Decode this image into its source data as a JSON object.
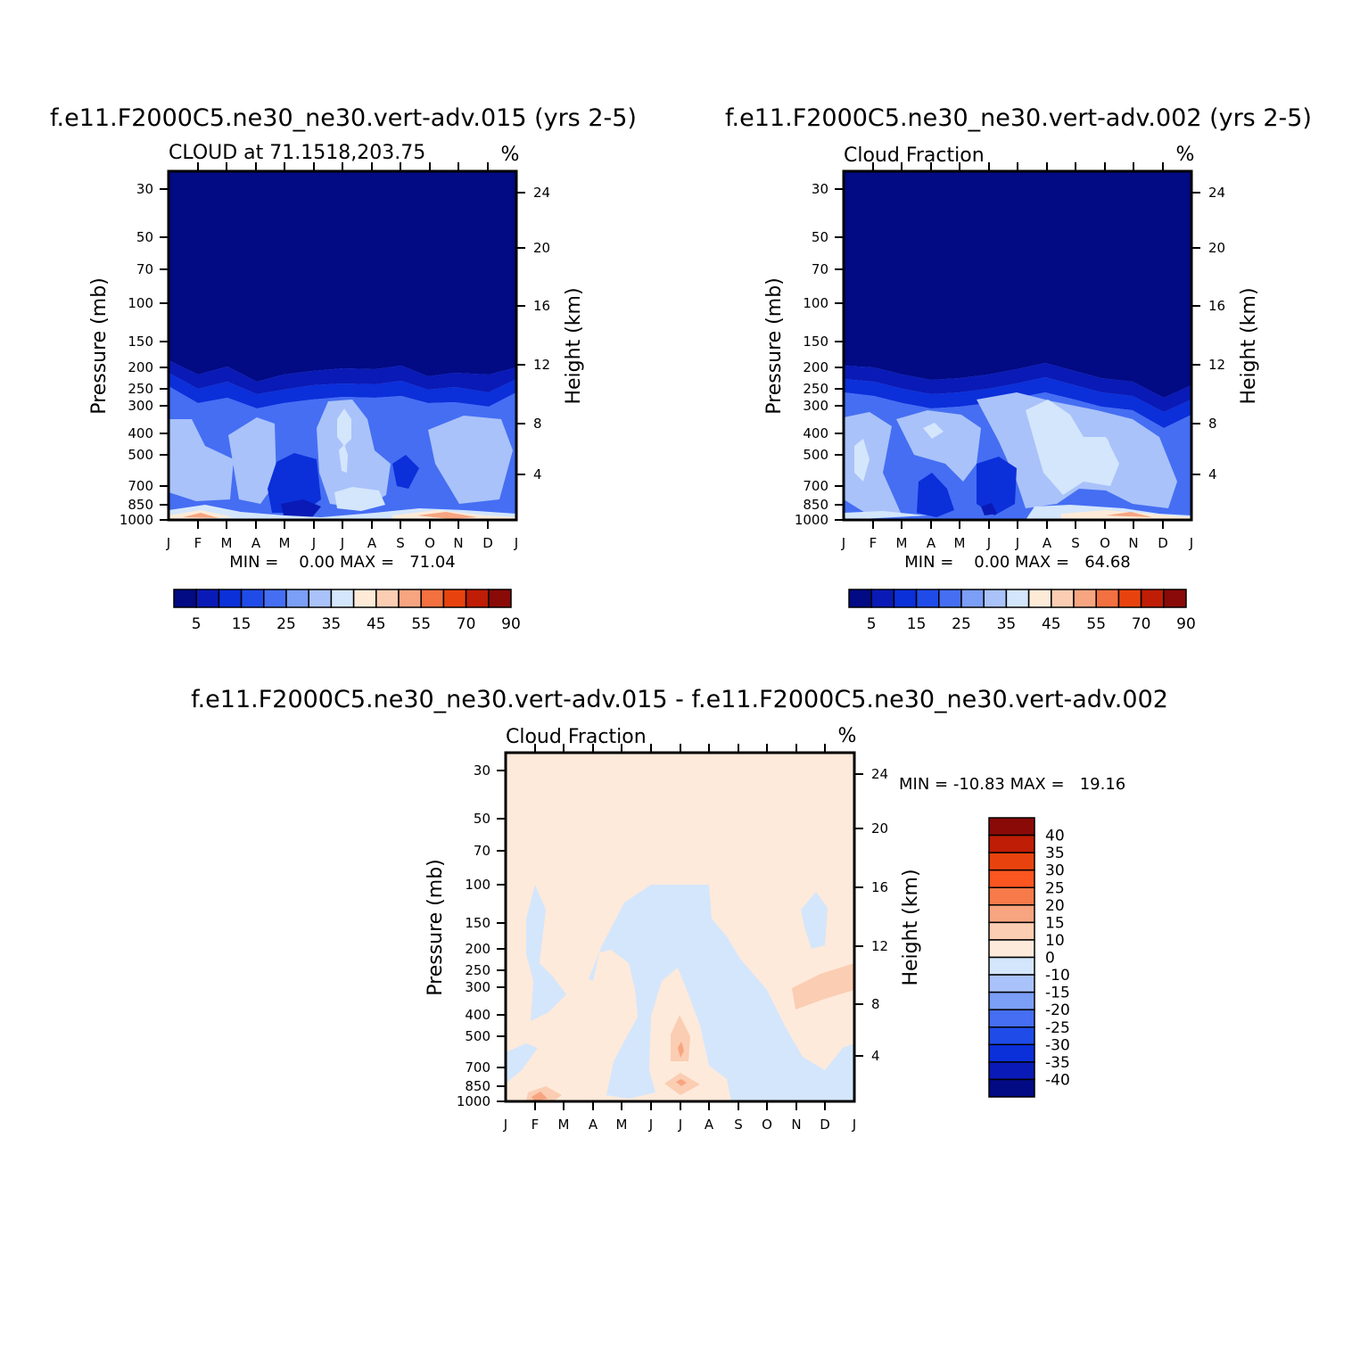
{
  "chart_data": [
    {
      "type": "heatmap",
      "title": "f.e11.F2000C5.ne30_ne30.vert-adv.015 (yrs 2-5)",
      "subtitle": "CLOUD at 71.1518,203.75",
      "units": "%",
      "ylabel": "Pressure (mb)",
      "y2label": "Height (km)",
      "x_ticks": [
        "J",
        "F",
        "M",
        "A",
        "M",
        "J",
        "J",
        "A",
        "S",
        "O",
        "N",
        "D",
        "J"
      ],
      "y_ticks": [
        30,
        50,
        70,
        100,
        150,
        200,
        250,
        300,
        400,
        500,
        700,
        850,
        1000
      ],
      "y2_ticks": [
        24,
        20,
        16,
        12,
        8,
        4
      ],
      "ylim": [
        1000,
        25
      ],
      "yscale": "log",
      "stats": "MIN =    0.00 MAX =   71.04",
      "min": 0.0,
      "max": 71.04,
      "colorbar_labels": [
        "5",
        "15",
        "25",
        "35",
        "45",
        "55",
        "70",
        "90"
      ],
      "colorbar_colors": [
        "#020a84",
        "#0a1ab6",
        "#0b2fd9",
        "#1f4ce8",
        "#456ef3",
        "#7b9ef6",
        "#a9c2fa",
        "#d4e6fc",
        "#fdebd8",
        "#fbcdb2",
        "#f7a580",
        "#f37040",
        "#e8430e",
        "#bf1d05",
        "#8a0a08"
      ],
      "colorbar_orientation": "horizontal"
    },
    {
      "type": "heatmap",
      "title": "f.e11.F2000C5.ne30_ne30.vert-adv.002 (yrs 2-5)",
      "subtitle": "Cloud Fraction",
      "units": "%",
      "ylabel": "Pressure (mb)",
      "y2label": "Height (km)",
      "x_ticks": [
        "J",
        "F",
        "M",
        "A",
        "M",
        "J",
        "J",
        "A",
        "S",
        "O",
        "N",
        "D",
        "J"
      ],
      "y_ticks": [
        30,
        50,
        70,
        100,
        150,
        200,
        250,
        300,
        400,
        500,
        700,
        850,
        1000
      ],
      "y2_ticks": [
        24,
        20,
        16,
        12,
        8,
        4
      ],
      "ylim": [
        1000,
        25
      ],
      "yscale": "log",
      "stats": "MIN =    0.00 MAX =   64.68",
      "min": 0.0,
      "max": 64.68,
      "colorbar_labels": [
        "5",
        "15",
        "25",
        "35",
        "45",
        "55",
        "70",
        "90"
      ],
      "colorbar_colors": [
        "#020a84",
        "#0a1ab6",
        "#0b2fd9",
        "#1f4ce8",
        "#456ef3",
        "#7b9ef6",
        "#a9c2fa",
        "#d4e6fc",
        "#fdebd8",
        "#fbcdb2",
        "#f7a580",
        "#f37040",
        "#e8430e",
        "#bf1d05",
        "#8a0a08"
      ],
      "colorbar_orientation": "horizontal"
    },
    {
      "type": "heatmap",
      "title": "f.e11.F2000C5.ne30_ne30.vert-adv.015 - f.e11.F2000C5.ne30_ne30.vert-adv.002",
      "subtitle": "Cloud Fraction",
      "units": "%",
      "ylabel": "Pressure (mb)",
      "y2label": "Height (km)",
      "x_ticks": [
        "J",
        "F",
        "M",
        "A",
        "M",
        "J",
        "J",
        "A",
        "S",
        "O",
        "N",
        "D",
        "J"
      ],
      "y_ticks": [
        30,
        50,
        70,
        100,
        150,
        200,
        250,
        300,
        400,
        500,
        700,
        850,
        1000
      ],
      "y2_ticks": [
        24,
        20,
        16,
        12,
        8,
        4
      ],
      "ylim": [
        1000,
        25
      ],
      "yscale": "log",
      "stats": "MIN = -10.83 MAX =   19.16",
      "min": -10.83,
      "max": 19.16,
      "colorbar_labels": [
        "40",
        "35",
        "30",
        "25",
        "20",
        "15",
        "10",
        "0",
        "-10",
        "-15",
        "-20",
        "-25",
        "-30",
        "-35",
        "-40"
      ],
      "colorbar_colors": [
        "#8a0a08",
        "#bf1d05",
        "#e8430e",
        "#fb5520",
        "#f77a4a",
        "#f7a580",
        "#fbcdb2",
        "#feeadb",
        "#d4e6fc",
        "#a9c2fa",
        "#7b9ef6",
        "#456ef3",
        "#1f4ce8",
        "#0b2fd9",
        "#0a1ab6",
        "#020a84"
      ],
      "colorbar_orientation": "vertical"
    }
  ]
}
